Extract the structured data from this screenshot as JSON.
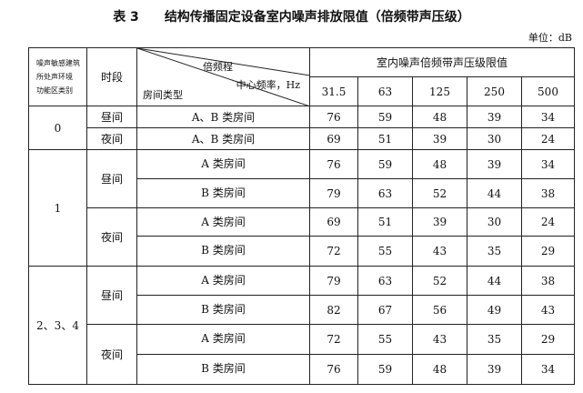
{
  "title": {
    "label": "表 3",
    "text": "结构传播固定设备室内噪声排放限值（倍频带声压级）"
  },
  "unit": "单位：dB",
  "header": {
    "category": [
      "噪声敏感建筑",
      "所处声环境",
      "功能区类别"
    ],
    "period": "时段",
    "diag_top": "倍频程",
    "diag_mid": "中心频率，Hz",
    "diag_bottom": "房间类型",
    "group": "室内噪声倍频带声压级限值",
    "freqs": [
      "31.5",
      "63",
      "125",
      "250",
      "500"
    ]
  },
  "rows": [
    {
      "cat": "0",
      "period": "昼间",
      "room": "A、B 类房间",
      "v": [
        "76",
        "59",
        "48",
        "39",
        "34"
      ]
    },
    {
      "period": "夜间",
      "room": "A、B 类房间",
      "v": [
        "69",
        "51",
        "39",
        "30",
        "24"
      ]
    },
    {
      "cat": "1",
      "period": "昼间",
      "room": "A 类房间",
      "v": [
        "76",
        "59",
        "48",
        "39",
        "34"
      ]
    },
    {
      "room": "B 类房间",
      "v": [
        "79",
        "63",
        "52",
        "44",
        "38"
      ]
    },
    {
      "period": "夜间",
      "room": "A 类房间",
      "v": [
        "69",
        "51",
        "39",
        "30",
        "24"
      ]
    },
    {
      "room": "B 类房间",
      "v": [
        "72",
        "55",
        "43",
        "35",
        "29"
      ]
    },
    {
      "cat": "2、3、4",
      "period": "昼间",
      "room": "A 类房间",
      "v": [
        "79",
        "63",
        "52",
        "44",
        "38"
      ]
    },
    {
      "room": "B 类房间",
      "v": [
        "82",
        "67",
        "56",
        "49",
        "43"
      ]
    },
    {
      "period": "夜间",
      "room": "A 类房间",
      "v": [
        "72",
        "55",
        "43",
        "35",
        "29"
      ]
    },
    {
      "room": "B 类房间",
      "v": [
        "76",
        "59",
        "48",
        "39",
        "34"
      ]
    }
  ]
}
